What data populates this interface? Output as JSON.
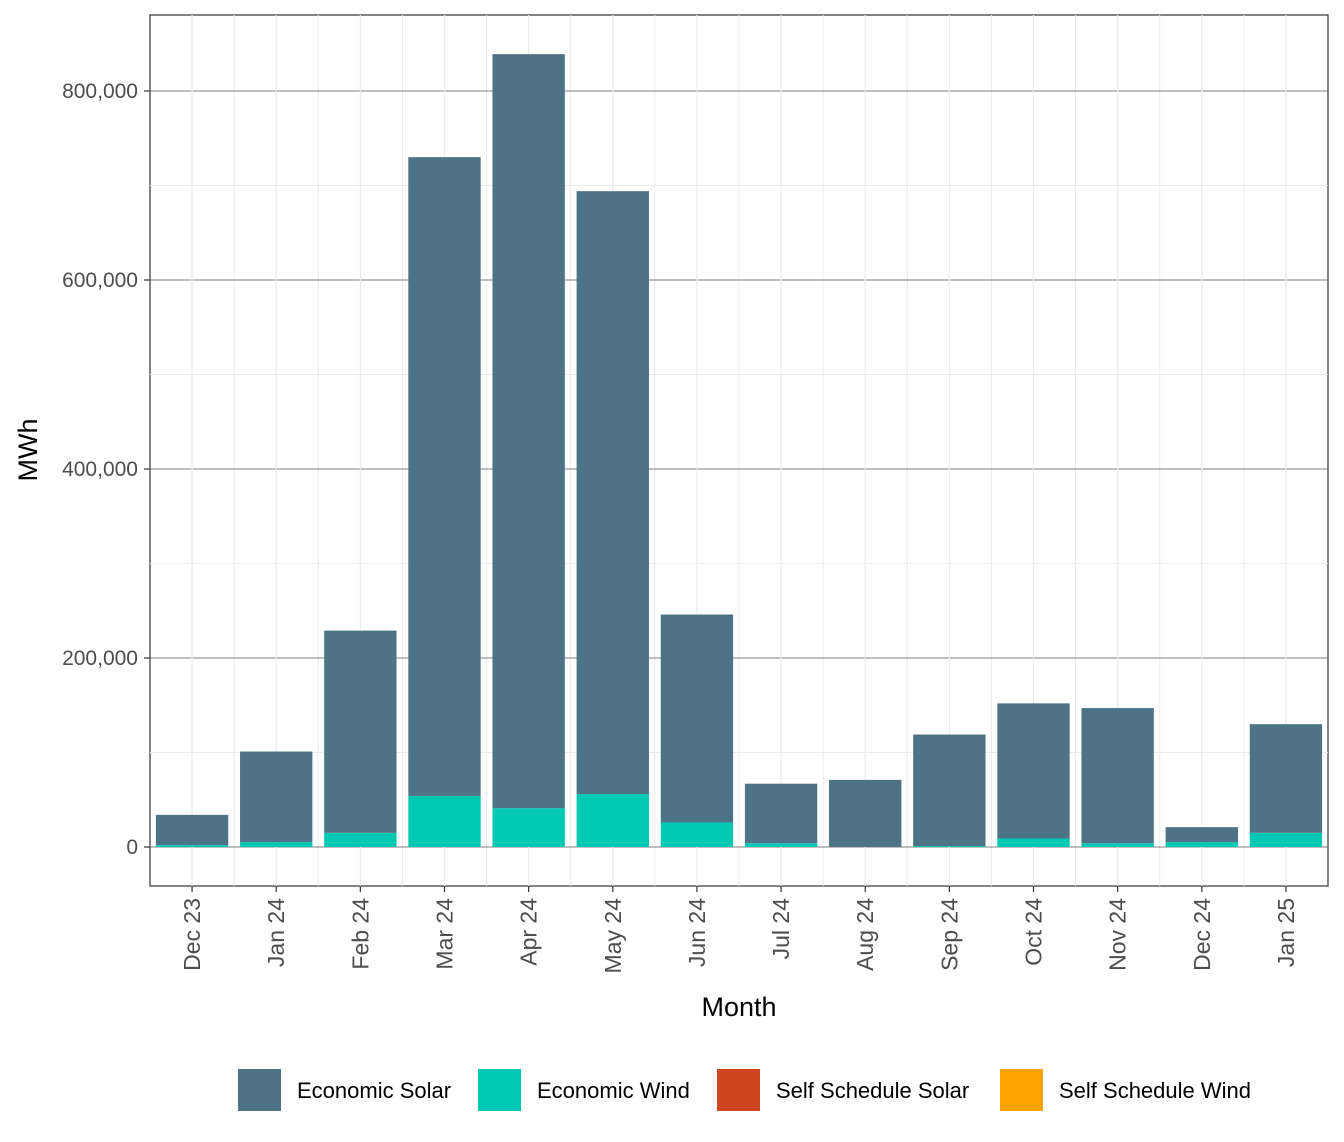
{
  "chart_data": {
    "type": "bar",
    "stacked": true,
    "title": "",
    "xlabel": "Month",
    "ylabel": "MWh",
    "ylim": [
      -40000,
      880000
    ],
    "yticks": [
      0,
      200000,
      400000,
      600000,
      800000
    ],
    "ytick_labels": [
      "0",
      "200,000",
      "400,000",
      "600,000",
      "800,000"
    ],
    "grid": true,
    "legend_position": "bottom",
    "categories": [
      "Dec 23",
      "Jan 24",
      "Feb 24",
      "Mar 24",
      "Apr 24",
      "May 24",
      "Jun 24",
      "Jul 24",
      "Aug 24",
      "Sep 24",
      "Oct 24",
      "Nov 24",
      "Dec 24",
      "Jan 25"
    ],
    "series": [
      {
        "name": "Economic Solar",
        "color": "#4e7387",
        "values": [
          32000,
          96000,
          214000,
          676000,
          798000,
          638000,
          220000,
          63000,
          71000,
          118000,
          143000,
          143000,
          16000,
          115000
        ]
      },
      {
        "name": "Economic Wind",
        "color": "#00c8b3",
        "values": [
          2000,
          5000,
          15000,
          54000,
          41000,
          56000,
          26000,
          4000,
          0,
          1000,
          9000,
          4000,
          5000,
          15000
        ]
      },
      {
        "name": "Self Schedule Solar",
        "color": "#cf4520",
        "values": [
          0,
          0,
          0,
          0,
          0,
          0,
          0,
          0,
          0,
          0,
          0,
          0,
          0,
          0
        ]
      },
      {
        "name": "Self Schedule Wind",
        "color": "#ffa300",
        "values": [
          0,
          0,
          0,
          0,
          0,
          0,
          0,
          0,
          0,
          0,
          0,
          0,
          0,
          0
        ]
      }
    ]
  }
}
